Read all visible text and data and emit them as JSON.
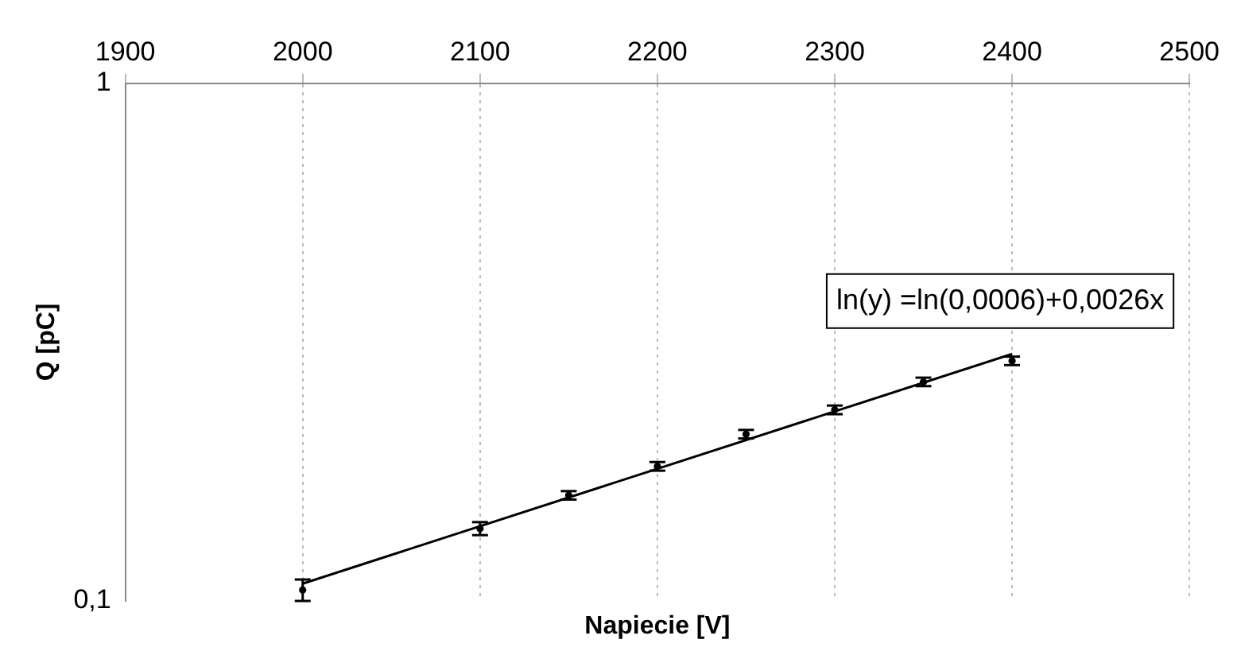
{
  "chart_data": {
    "type": "scatter",
    "xlabel": "Napiecie [V]",
    "ylabel": "Q [pC]",
    "xlim": [
      1900,
      2500
    ],
    "xticks": [
      1900,
      2000,
      2100,
      2200,
      2300,
      2400,
      2500
    ],
    "ylim": [
      0.1,
      1
    ],
    "yticks": [
      {
        "value": 0.1,
        "label": "0,1"
      },
      1
    ],
    "log": "y",
    "grid": "x",
    "legend": false,
    "marker": "circle",
    "annotations": [
      "ln(y) =ln(0,0006)+0,0026x"
    ],
    "series": [
      {
        "type": "scatter",
        "color": "#000000",
        "x": [
          2000,
          2100,
          2150,
          2200,
          2250,
          2300,
          2350,
          2400
        ],
        "values": [
          0.105,
          0.138,
          0.16,
          0.182,
          0.21,
          0.234,
          0.265,
          0.291
        ],
        "errors": [
          0.005,
          0.004,
          0.003,
          0.0035,
          0.004,
          0.0045,
          0.005,
          0.0055
        ]
      },
      {
        "type": "line",
        "color": "#000000",
        "x": [
          2000,
          2400
        ],
        "values": [
          0.108,
          0.3
        ],
        "marker": "none"
      }
    ]
  }
}
